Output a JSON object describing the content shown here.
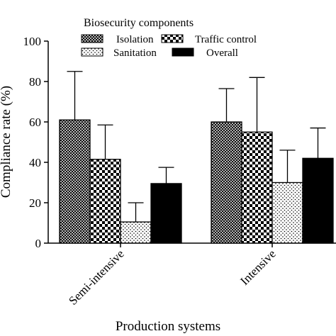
{
  "chart_data": {
    "type": "bar",
    "legend_title": "Biosecurity components",
    "xlabel": "Production systems",
    "ylabel": "Compliance rate (%)",
    "ylim": [
      0,
      100
    ],
    "yticks": [
      0,
      20,
      40,
      60,
      80,
      100
    ],
    "categories": [
      "Semi-intensive",
      "Intensive"
    ],
    "legend_placement": "top",
    "grid": false,
    "series": [
      {
        "name": "Isolation",
        "pattern": "crosshatch",
        "values": [
          61,
          60
        ],
        "errors": [
          24,
          16.5
        ]
      },
      {
        "name": "Traffic control",
        "pattern": "checker",
        "values": [
          41.5,
          55
        ],
        "errors": [
          17,
          27
        ]
      },
      {
        "name": "Sanitation",
        "pattern": "dots",
        "values": [
          10.5,
          30
        ],
        "errors": [
          9.5,
          16
        ]
      },
      {
        "name": "Overall",
        "pattern": "solid",
        "values": [
          29.5,
          42
        ],
        "errors": [
          8,
          15
        ]
      }
    ]
  }
}
